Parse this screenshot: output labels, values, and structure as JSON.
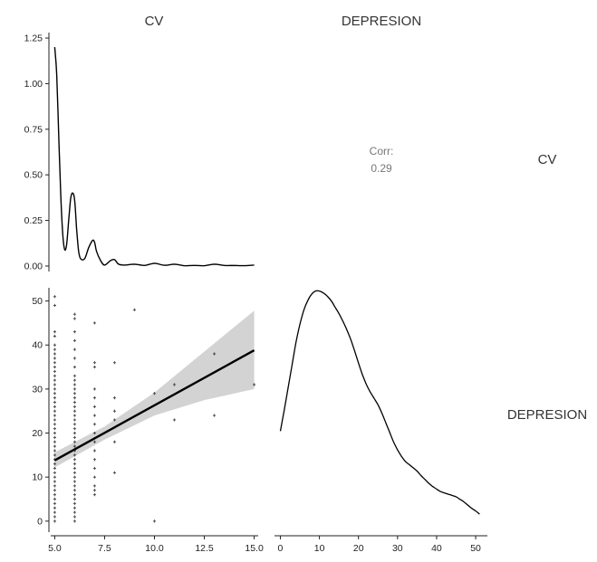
{
  "column_titles": [
    "CV",
    "DEPRESION"
  ],
  "row_titles": [
    "CV",
    "DEPRESION"
  ],
  "correlation": {
    "label": "Corr:",
    "value": "0.29"
  },
  "colors": {
    "line": "#000000",
    "points": "#333333",
    "ci_band": "#d3d3d3",
    "text": "#333333"
  },
  "chart_data": [
    {
      "type": "line",
      "panel": "CV density",
      "x": [
        5.0,
        5.1,
        5.2,
        5.3,
        5.4,
        5.5,
        5.6,
        5.7,
        5.8,
        5.9,
        6.0,
        6.1,
        6.2,
        6.3,
        6.5,
        6.7,
        6.9,
        7.0,
        7.1,
        7.3,
        7.5,
        7.8,
        8.0,
        8.2,
        8.5,
        9.0,
        9.5,
        10.0,
        10.5,
        11.0,
        11.5,
        12.0,
        12.5,
        13.0,
        13.5,
        14.0,
        14.5,
        15.0
      ],
      "y": [
        1.2,
        1.05,
        0.72,
        0.4,
        0.18,
        0.09,
        0.12,
        0.25,
        0.37,
        0.4,
        0.36,
        0.2,
        0.08,
        0.04,
        0.04,
        0.1,
        0.14,
        0.13,
        0.08,
        0.03,
        0.005,
        0.03,
        0.035,
        0.01,
        0.005,
        0.01,
        0.003,
        0.015,
        0.004,
        0.01,
        0.002,
        0.003,
        0.002,
        0.01,
        0.003,
        0.003,
        0.002,
        0.005
      ],
      "xlim": [
        4.8,
        15.2
      ],
      "ylim": [
        -0.03,
        1.28
      ],
      "y_ticks": [
        "0.00",
        "0.25",
        "0.50",
        "0.75",
        "1.00",
        "1.25"
      ],
      "y_tick_values": [
        0,
        0.25,
        0.5,
        0.75,
        1.0,
        1.25
      ]
    },
    {
      "type": "scatter",
      "panel": "DEPRESION vs CV",
      "xlim": [
        4.8,
        15.2
      ],
      "ylim": [
        -2.5,
        53
      ],
      "x_ticks": [
        "5.0",
        "7.5",
        "10.0",
        "12.5",
        "15.0"
      ],
      "x_tick_values": [
        5.0,
        7.5,
        10.0,
        12.5,
        15.0
      ],
      "y_ticks": [
        "0",
        "10",
        "20",
        "30",
        "40",
        "50"
      ],
      "y_tick_values": [
        0,
        10,
        20,
        30,
        40,
        50
      ],
      "points": [
        [
          5,
          0
        ],
        [
          5,
          1
        ],
        [
          5,
          2
        ],
        [
          5,
          3
        ],
        [
          5,
          4
        ],
        [
          5,
          5
        ],
        [
          5,
          6
        ],
        [
          5,
          7
        ],
        [
          5,
          8
        ],
        [
          5,
          9
        ],
        [
          5,
          10
        ],
        [
          5,
          11
        ],
        [
          5,
          12
        ],
        [
          5,
          13
        ],
        [
          5,
          14
        ],
        [
          5,
          15
        ],
        [
          5,
          16
        ],
        [
          5,
          17
        ],
        [
          5,
          18
        ],
        [
          5,
          19
        ],
        [
          5,
          20
        ],
        [
          5,
          21
        ],
        [
          5,
          22
        ],
        [
          5,
          23
        ],
        [
          5,
          24
        ],
        [
          5,
          25
        ],
        [
          5,
          26
        ],
        [
          5,
          27
        ],
        [
          5,
          28
        ],
        [
          5,
          29
        ],
        [
          5,
          30
        ],
        [
          5,
          31
        ],
        [
          5,
          32
        ],
        [
          5,
          33
        ],
        [
          5,
          34
        ],
        [
          5,
          35
        ],
        [
          5,
          36
        ],
        [
          5,
          37
        ],
        [
          5,
          38
        ],
        [
          5,
          39
        ],
        [
          5,
          40
        ],
        [
          5,
          42
        ],
        [
          5,
          43
        ],
        [
          5,
          49
        ],
        [
          5,
          51
        ],
        [
          6,
          0
        ],
        [
          6,
          1
        ],
        [
          6,
          2
        ],
        [
          6,
          3
        ],
        [
          6,
          4
        ],
        [
          6,
          5
        ],
        [
          6,
          6
        ],
        [
          6,
          7
        ],
        [
          6,
          8
        ],
        [
          6,
          9
        ],
        [
          6,
          10
        ],
        [
          6,
          11
        ],
        [
          6,
          12
        ],
        [
          6,
          13
        ],
        [
          6,
          14
        ],
        [
          6,
          15
        ],
        [
          6,
          16
        ],
        [
          6,
          17
        ],
        [
          6,
          18
        ],
        [
          6,
          19
        ],
        [
          6,
          20
        ],
        [
          6,
          21
        ],
        [
          6,
          22
        ],
        [
          6,
          23
        ],
        [
          6,
          24
        ],
        [
          6,
          25
        ],
        [
          6,
          26
        ],
        [
          6,
          27
        ],
        [
          6,
          28
        ],
        [
          6,
          29
        ],
        [
          6,
          30
        ],
        [
          6,
          31
        ],
        [
          6,
          32
        ],
        [
          6,
          33
        ],
        [
          6,
          35
        ],
        [
          6,
          37
        ],
        [
          6,
          39
        ],
        [
          6,
          41
        ],
        [
          6,
          43
        ],
        [
          6,
          46
        ],
        [
          6,
          47
        ],
        [
          7,
          6
        ],
        [
          7,
          7
        ],
        [
          7,
          8
        ],
        [
          7,
          10
        ],
        [
          7,
          12
        ],
        [
          7,
          14
        ],
        [
          7,
          16
        ],
        [
          7,
          18
        ],
        [
          7,
          20
        ],
        [
          7,
          22
        ],
        [
          7,
          24
        ],
        [
          7,
          26
        ],
        [
          7,
          28
        ],
        [
          7,
          30
        ],
        [
          7,
          35
        ],
        [
          7,
          36
        ],
        [
          7,
          45
        ],
        [
          8,
          11
        ],
        [
          8,
          18
        ],
        [
          8,
          23
        ],
        [
          8,
          25
        ],
        [
          8,
          28
        ],
        [
          8,
          36
        ],
        [
          9,
          48
        ],
        [
          10,
          0
        ],
        [
          10,
          29
        ],
        [
          11,
          23
        ],
        [
          11,
          31
        ],
        [
          13,
          24
        ],
        [
          13,
          38
        ],
        [
          15,
          31
        ]
      ],
      "fit": {
        "x": [
          5.0,
          15.0
        ],
        "y": [
          13.8,
          38.8
        ]
      },
      "ci": {
        "x": [
          5.0,
          7.5,
          10.0,
          12.5,
          15.0
        ],
        "lower": [
          12.2,
          18.5,
          24.0,
          27.5,
          30.0
        ],
        "upper": [
          15.6,
          21.5,
          29.2,
          38.5,
          47.8
        ]
      }
    },
    {
      "type": "line",
      "panel": "DEPRESION density",
      "x": [
        0,
        1,
        2,
        3,
        4,
        5,
        6,
        7,
        8,
        9,
        10,
        11,
        12,
        13,
        14,
        15,
        16,
        17,
        18,
        19,
        20,
        21,
        22,
        23,
        24,
        25,
        26,
        27,
        28,
        29,
        30,
        31,
        32,
        33,
        34,
        35,
        36,
        37,
        38,
        39,
        40,
        41,
        42,
        43,
        44,
        45,
        46,
        47,
        48,
        49,
        50,
        51
      ],
      "y": [
        0.0137,
        0.017,
        0.0205,
        0.024,
        0.0275,
        0.0303,
        0.0325,
        0.034,
        0.035,
        0.0355,
        0.0355,
        0.0352,
        0.0347,
        0.034,
        0.033,
        0.032,
        0.0308,
        0.0295,
        0.028,
        0.0262,
        0.0243,
        0.0225,
        0.021,
        0.0198,
        0.0188,
        0.0178,
        0.0165,
        0.015,
        0.0135,
        0.012,
        0.0108,
        0.0098,
        0.009,
        0.0085,
        0.008,
        0.0075,
        0.0068,
        0.0062,
        0.0056,
        0.0051,
        0.0047,
        0.0043,
        0.0041,
        0.0039,
        0.0037,
        0.0035,
        0.0031,
        0.0027,
        0.0022,
        0.0017,
        0.0013,
        0.0008
      ],
      "xlim": [
        -1.5,
        53
      ],
      "ylim": [
        -0.002,
        0.036
      ],
      "x_ticks": [
        "0",
        "10",
        "20",
        "30",
        "40",
        "50"
      ],
      "x_tick_values": [
        0,
        10,
        20,
        30,
        40,
        50
      ]
    }
  ]
}
